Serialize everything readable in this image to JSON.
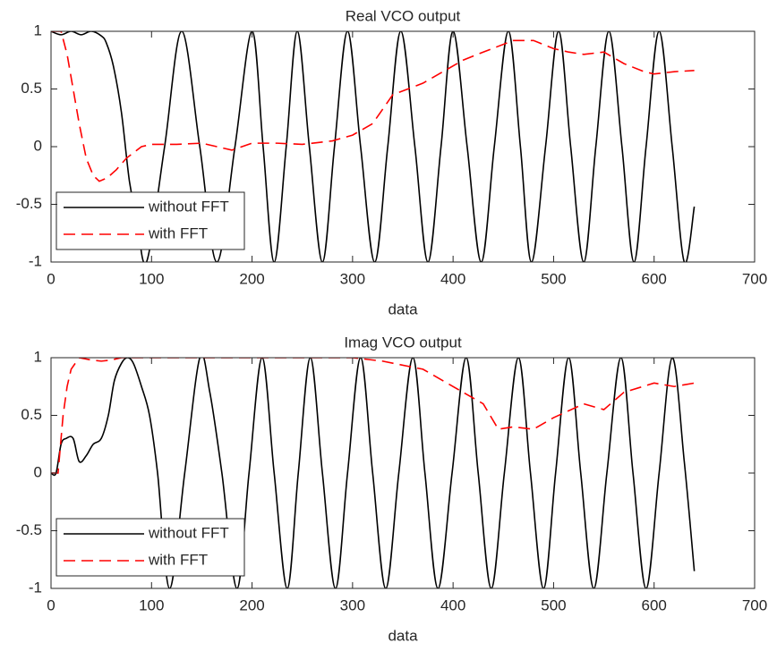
{
  "chart_data": [
    {
      "type": "line",
      "title": "Real VCO output",
      "xlabel": "data",
      "xlim": [
        0,
        700
      ],
      "xticks": [
        0,
        100,
        200,
        300,
        400,
        500,
        600,
        700
      ],
      "ylim": [
        -1,
        1
      ],
      "yticks": [
        -1,
        -0.5,
        0,
        0.5,
        1
      ],
      "legend": "southwest",
      "series": [
        {
          "name": "without FFT",
          "color": "#000000",
          "style": "solid",
          "x": [
            0,
            10,
            20,
            30,
            40,
            50,
            55,
            62,
            70,
            78,
            85,
            95,
            113,
            130,
            148,
            165,
            183,
            200,
            211,
            222,
            234,
            245,
            257,
            270,
            282,
            295,
            308,
            322,
            335,
            348,
            362,
            375,
            388,
            400,
            414,
            428,
            441,
            455,
            467,
            478,
            492,
            505,
            517,
            530,
            542,
            555,
            568,
            580,
            592,
            605,
            618,
            630,
            640
          ],
          "values": [
            1,
            0.97,
            1,
            0.97,
            1,
            0.96,
            0.9,
            0.7,
            0.3,
            -0.3,
            -0.6,
            -1,
            0,
            1,
            0,
            -1,
            0,
            1,
            0,
            -1,
            0,
            1,
            0,
            -1,
            0,
            1,
            0,
            -1,
            0,
            1,
            0,
            -1,
            0,
            1,
            0,
            -1,
            0,
            1,
            0,
            -1,
            0,
            1,
            0,
            -1,
            0,
            1,
            0,
            -1,
            0,
            1,
            0,
            -1,
            -0.52
          ]
        },
        {
          "name": "with FFT",
          "color": "#ff0000",
          "style": "dashed",
          "x": [
            0,
            10,
            16,
            22,
            28,
            35,
            42,
            48,
            56,
            65,
            75,
            90,
            100,
            125,
            150,
            165,
            180,
            200,
            225,
            250,
            280,
            300,
            320,
            340,
            370,
            390,
            410,
            430,
            460,
            480,
            500,
            515,
            530,
            550,
            570,
            590,
            600,
            620,
            640
          ],
          "values": [
            1,
            1,
            0.8,
            0.5,
            0.2,
            -0.1,
            -0.25,
            -0.3,
            -0.27,
            -0.2,
            -0.1,
            0,
            0.02,
            0.02,
            0.03,
            0,
            -0.03,
            0.03,
            0.03,
            0.02,
            0.05,
            0.1,
            0.2,
            0.45,
            0.55,
            0.65,
            0.75,
            0.82,
            0.92,
            0.92,
            0.85,
            0.82,
            0.8,
            0.82,
            0.72,
            0.65,
            0.63,
            0.65,
            0.66
          ]
        }
      ]
    },
    {
      "type": "line",
      "title": "Imag VCO output",
      "xlabel": "data",
      "xlim": [
        0,
        700
      ],
      "xticks": [
        0,
        100,
        200,
        300,
        400,
        500,
        600,
        700
      ],
      "ylim": [
        -1,
        1
      ],
      "yticks": [
        -1,
        -0.5,
        0,
        0.5,
        1
      ],
      "legend": "southwest",
      "series": [
        {
          "name": "without FFT",
          "color": "#000000",
          "style": "solid",
          "x": [
            0,
            5,
            10,
            15,
            22,
            28,
            35,
            42,
            50,
            57,
            63,
            70,
            76,
            82,
            90,
            98,
            106,
            118,
            133,
            148,
            158,
            170,
            185,
            197,
            210,
            222,
            235,
            246,
            258,
            270,
            283,
            295,
            308,
            320,
            333,
            346,
            360,
            372,
            385,
            399,
            413,
            425,
            438,
            451,
            465,
            477,
            490,
            502,
            515,
            527,
            540,
            553,
            567,
            579,
            592,
            605,
            618,
            630,
            640
          ],
          "values": [
            0,
            0,
            0.25,
            0.3,
            0.3,
            0.1,
            0.15,
            0.25,
            0.3,
            0.5,
            0.8,
            0.95,
            1,
            0.95,
            0.75,
            0.5,
            0,
            -1,
            0,
            1,
            0.7,
            0,
            -1,
            0,
            1,
            0,
            -1,
            0,
            1,
            0,
            -1,
            0,
            1,
            0,
            -1,
            0,
            1,
            0,
            -1,
            0,
            1,
            0,
            -1,
            0,
            1,
            0,
            -1,
            0,
            1,
            0,
            -1,
            0,
            1,
            0,
            -1,
            0,
            1,
            0.1,
            -0.85
          ]
        },
        {
          "name": "with FFT",
          "color": "#ff0000",
          "style": "dashed",
          "x": [
            0,
            7,
            12,
            16,
            20,
            28,
            40,
            50,
            60,
            70,
            100,
            200,
            300,
            330,
            370,
            390,
            410,
            430,
            445,
            460,
            480,
            500,
            530,
            550,
            570,
            600,
            620,
            640
          ],
          "values": [
            0,
            0,
            0.5,
            0.75,
            0.9,
            1,
            0.98,
            0.97,
            0.98,
            1,
            1,
            1,
            1,
            0.97,
            0.9,
            0.8,
            0.7,
            0.6,
            0.38,
            0.4,
            0.38,
            0.48,
            0.6,
            0.55,
            0.7,
            0.78,
            0.75,
            0.78
          ]
        }
      ]
    }
  ]
}
